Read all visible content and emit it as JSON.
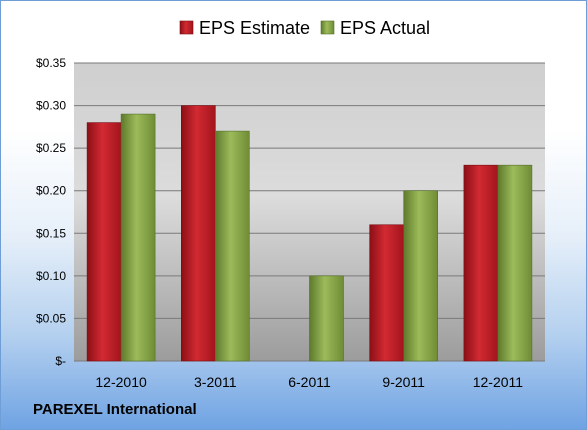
{
  "company": "PAREXEL International",
  "chart_data": {
    "type": "bar",
    "title": "",
    "xlabel": "",
    "ylabel": "",
    "categories": [
      "12-2010",
      "3-2011",
      "6-2011",
      "9-2011",
      "12-2011"
    ],
    "series": [
      {
        "name": "EPS Estimate",
        "values": [
          0.28,
          0.3,
          null,
          0.16,
          0.23
        ],
        "color": "#c0212b"
      },
      {
        "name": "EPS Actual",
        "values": [
          0.29,
          0.27,
          0.1,
          0.2,
          0.23
        ],
        "color": "#8aa84a"
      }
    ],
    "ylim": [
      0,
      0.35
    ],
    "yticks": [
      0,
      0.05,
      0.1,
      0.15,
      0.2,
      0.25,
      0.3,
      0.35
    ],
    "ytick_labels": [
      "$-",
      "$0.05",
      "$0.10",
      "$0.15",
      "$0.20",
      "$0.25",
      "$0.30",
      "$0.35"
    ],
    "grid": true,
    "legend": "top-center"
  }
}
